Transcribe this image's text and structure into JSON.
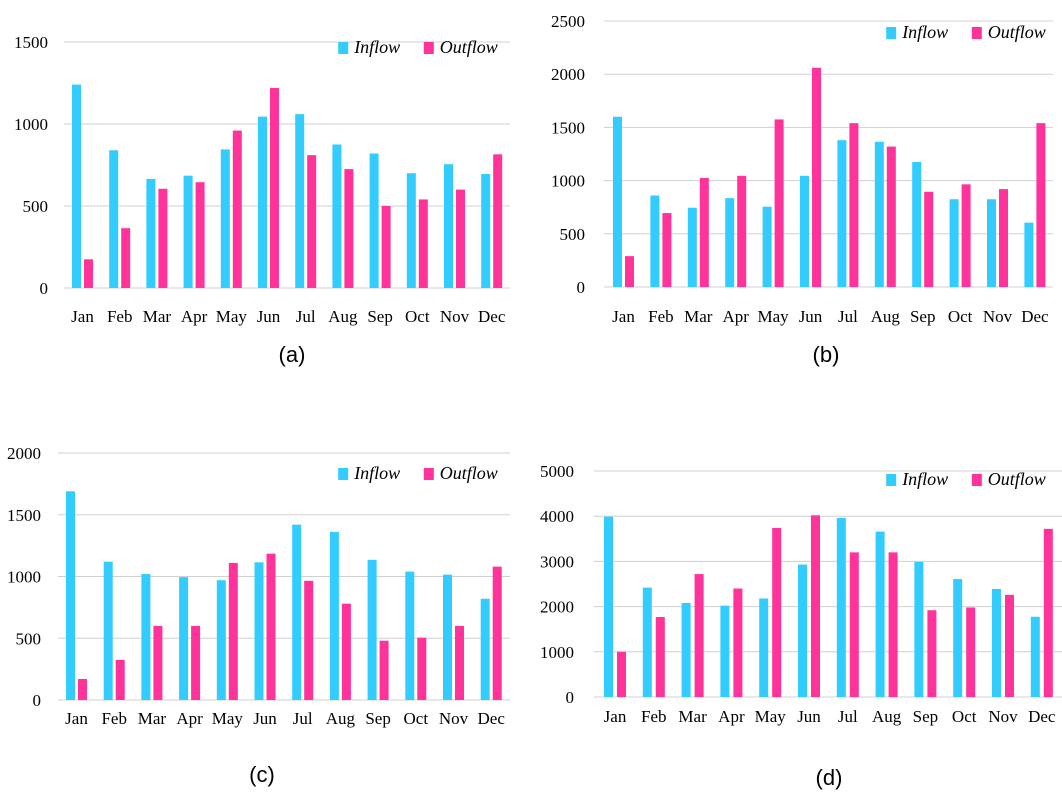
{
  "colors": {
    "inflow": "#33CCFF",
    "outflow": "#FF3399",
    "grid": "#D0D0D0"
  },
  "chart_data": [
    {
      "type": "bar",
      "caption": "(a)",
      "categories": [
        "Jan",
        "Feb",
        "Mar",
        "Apr",
        "May",
        "Jun",
        "Jul",
        "Aug",
        "Sep",
        "Oct",
        "Nov",
        "Dec"
      ],
      "series": [
        {
          "name": "Inflow",
          "values": [
            1240,
            840,
            665,
            685,
            845,
            1045,
            1060,
            875,
            820,
            700,
            755,
            695
          ]
        },
        {
          "name": "Outflow",
          "values": [
            175,
            365,
            605,
            645,
            960,
            1220,
            810,
            725,
            500,
            540,
            600,
            815
          ]
        }
      ],
      "ylim": [
        0,
        1500
      ],
      "yticks": [
        0,
        500,
        1000,
        1500
      ],
      "grid": true,
      "legend": "top-right"
    },
    {
      "type": "bar",
      "caption": "(b)",
      "categories": [
        "Jan",
        "Feb",
        "Mar",
        "Apr",
        "May",
        "Jun",
        "Jul",
        "Aug",
        "Sep",
        "Oct",
        "Nov",
        "Dec"
      ],
      "series": [
        {
          "name": "Inflow",
          "values": [
            1600,
            860,
            745,
            835,
            755,
            1045,
            1380,
            1365,
            1175,
            825,
            825,
            605
          ]
        },
        {
          "name": "Outflow",
          "values": [
            290,
            695,
            1025,
            1045,
            1575,
            2060,
            1540,
            1320,
            895,
            965,
            920,
            1540
          ]
        }
      ],
      "ylim": [
        0,
        2500
      ],
      "yticks": [
        0,
        500,
        1000,
        1500,
        2000,
        2500
      ],
      "grid": true,
      "legend": "top-right"
    },
    {
      "type": "bar",
      "caption": "(c)",
      "categories": [
        "Jan",
        "Feb",
        "Mar",
        "Apr",
        "May",
        "Jun",
        "Jul",
        "Aug",
        "Sep",
        "Oct",
        "Nov",
        "Dec"
      ],
      "series": [
        {
          "name": "Inflow",
          "values": [
            1690,
            1120,
            1020,
            995,
            970,
            1115,
            1420,
            1360,
            1135,
            1040,
            1015,
            820
          ]
        },
        {
          "name": "Outflow",
          "values": [
            170,
            325,
            600,
            600,
            1110,
            1185,
            965,
            780,
            480,
            505,
            600,
            1080
          ]
        }
      ],
      "ylim": [
        0,
        2000
      ],
      "yticks": [
        0,
        500,
        1000,
        1500,
        2000
      ],
      "grid": true,
      "legend": "top-right"
    },
    {
      "type": "bar",
      "caption": "(d)",
      "categories": [
        "Jan",
        "Feb",
        "Mar",
        "Apr",
        "May",
        "Jun",
        "Jul",
        "Aug",
        "Sep",
        "Oct",
        "Nov",
        "Dec"
      ],
      "series": [
        {
          "name": "Inflow",
          "values": [
            3990,
            2420,
            2080,
            2020,
            2180,
            2930,
            3960,
            3660,
            2990,
            2610,
            2390,
            1775
          ]
        },
        {
          "name": "Outflow",
          "values": [
            1000,
            1770,
            2720,
            2400,
            3740,
            4020,
            3200,
            3200,
            1920,
            1980,
            2260,
            3720
          ]
        }
      ],
      "ylim": [
        0,
        5000
      ],
      "yticks": [
        0,
        1000,
        2000,
        3000,
        4000,
        5000
      ],
      "grid": true,
      "legend": "top-right"
    }
  ]
}
